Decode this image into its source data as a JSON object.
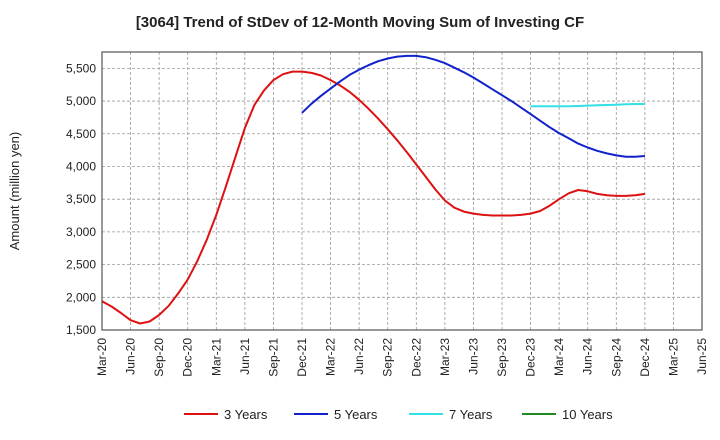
{
  "chart_data": {
    "type": "line",
    "title": "[3064]  Trend of StDev of 12-Month Moving Sum of Investing CF",
    "ylabel": "Amount (million yen)",
    "xlabel": "",
    "ylim": [
      1500,
      5750
    ],
    "yticks": [
      1500,
      2000,
      2500,
      3000,
      3500,
      4000,
      4500,
      5000,
      5500
    ],
    "ytick_labels": [
      "1,500",
      "2,000",
      "2,500",
      "3,000",
      "3,500",
      "4,000",
      "4,500",
      "5,000",
      "5,500"
    ],
    "x_start": "Mar-20",
    "x_end": "Jun-25",
    "xticks": [
      "Mar-20",
      "Jun-20",
      "Sep-20",
      "Dec-20",
      "Mar-21",
      "Jun-21",
      "Sep-21",
      "Dec-21",
      "Mar-22",
      "Jun-22",
      "Sep-22",
      "Dec-22",
      "Mar-23",
      "Jun-23",
      "Sep-23",
      "Dec-23",
      "Mar-24",
      "Jun-24",
      "Sep-24",
      "Dec-24",
      "Mar-25",
      "Jun-25"
    ],
    "grid": true,
    "legend_position": "bottom",
    "series": [
      {
        "name": "3 Years",
        "color": "#dd1111",
        "x": [
          "Mar-20",
          "Apr-20",
          "May-20",
          "Jun-20",
          "Jul-20",
          "Aug-20",
          "Sep-20",
          "Oct-20",
          "Nov-20",
          "Dec-20",
          "Jan-21",
          "Feb-21",
          "Mar-21",
          "Apr-21",
          "May-21",
          "Jun-21",
          "Jul-21",
          "Aug-21",
          "Sep-21",
          "Oct-21",
          "Nov-21",
          "Dec-21",
          "Jan-22",
          "Feb-22",
          "Mar-22",
          "Apr-22",
          "May-22",
          "Jun-22",
          "Jul-22",
          "Aug-22",
          "Sep-22",
          "Oct-22",
          "Nov-22",
          "Dec-22",
          "Jan-23",
          "Feb-23",
          "Mar-23",
          "Apr-23",
          "May-23",
          "Jun-23",
          "Jul-23",
          "Aug-23",
          "Sep-23",
          "Oct-23",
          "Nov-23",
          "Dec-23",
          "Jan-24",
          "Feb-24",
          "Mar-24",
          "Apr-24",
          "May-24",
          "Jun-24",
          "Jul-24",
          "Aug-24",
          "Sep-24",
          "Oct-24",
          "Nov-24",
          "Dec-24"
        ],
        "values": [
          1940,
          1860,
          1760,
          1650,
          1600,
          1630,
          1730,
          1870,
          2060,
          2270,
          2550,
          2880,
          3260,
          3690,
          4140,
          4590,
          4940,
          5160,
          5320,
          5410,
          5450,
          5450,
          5430,
          5390,
          5320,
          5240,
          5140,
          5020,
          4880,
          4730,
          4570,
          4400,
          4220,
          4030,
          3840,
          3650,
          3480,
          3370,
          3310,
          3280,
          3260,
          3250,
          3250,
          3250,
          3260,
          3280,
          3320,
          3400,
          3500,
          3590,
          3640,
          3620,
          3580,
          3560,
          3550,
          3550,
          3560,
          3580
        ]
      },
      {
        "name": "5 Years",
        "color": "#1122cc",
        "x": [
          "Dec-21",
          "Jan-22",
          "Feb-22",
          "Mar-22",
          "Apr-22",
          "May-22",
          "Jun-22",
          "Jul-22",
          "Aug-22",
          "Sep-22",
          "Oct-22",
          "Nov-22",
          "Dec-22",
          "Jan-23",
          "Feb-23",
          "Mar-23",
          "Apr-23",
          "May-23",
          "Jun-23",
          "Jul-23",
          "Aug-23",
          "Sep-23",
          "Oct-23",
          "Nov-23",
          "Dec-23",
          "Jan-24",
          "Feb-24",
          "Mar-24",
          "Apr-24",
          "May-24",
          "Jun-24",
          "Jul-24",
          "Aug-24",
          "Sep-24",
          "Oct-24",
          "Nov-24",
          "Dec-24"
        ],
        "values": [
          4820,
          4960,
          5080,
          5190,
          5300,
          5400,
          5480,
          5550,
          5610,
          5650,
          5680,
          5690,
          5690,
          5670,
          5630,
          5580,
          5510,
          5440,
          5360,
          5270,
          5180,
          5090,
          5000,
          4900,
          4800,
          4700,
          4600,
          4510,
          4430,
          4350,
          4290,
          4240,
          4200,
          4170,
          4150,
          4150,
          4160
        ]
      },
      {
        "name": "7 Years",
        "color": "#33e0e8",
        "x": [
          "Dec-23",
          "Jan-24",
          "Feb-24",
          "Mar-24",
          "Apr-24",
          "May-24",
          "Jun-24",
          "Jul-24",
          "Aug-24",
          "Sep-24",
          "Oct-24",
          "Nov-24",
          "Dec-24"
        ],
        "values": [
          4920,
          4920,
          4920,
          4920,
          4920,
          4925,
          4930,
          4935,
          4940,
          4945,
          4950,
          4955,
          4955
        ]
      },
      {
        "name": "10 Years",
        "color": "#228822",
        "x": [],
        "values": []
      }
    ]
  }
}
